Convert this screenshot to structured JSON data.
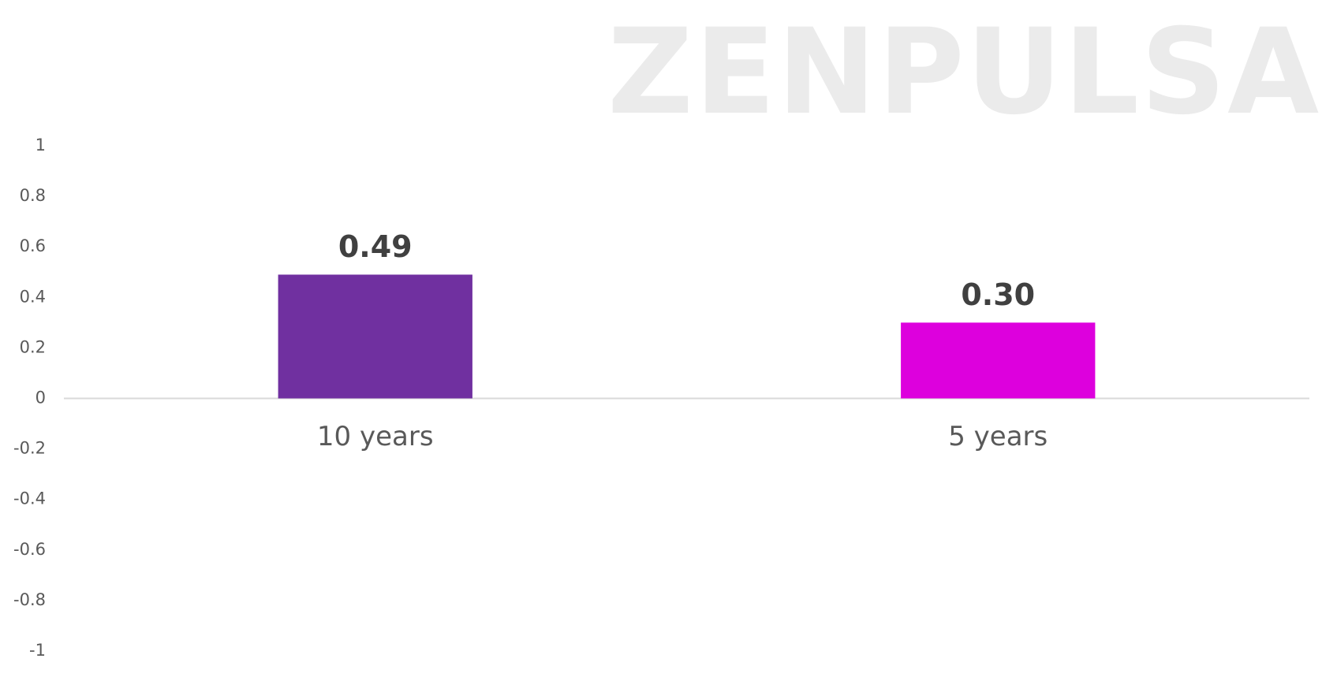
{
  "chart_data": {
    "type": "bar",
    "watermark": "ZENPULSAR",
    "categories": [
      "10 years",
      "5 years"
    ],
    "values": [
      0.49,
      0.3
    ],
    "value_labels": [
      "0.49",
      "0.30"
    ],
    "colors": [
      "#7030a0",
      "#dd00dd"
    ],
    "ylim": [
      -1,
      1
    ],
    "yticks": [
      1,
      0.8,
      0.6,
      0.4,
      0.2,
      0,
      -0.2,
      -0.4,
      -0.6,
      -0.8,
      -1
    ],
    "grid": false
  }
}
